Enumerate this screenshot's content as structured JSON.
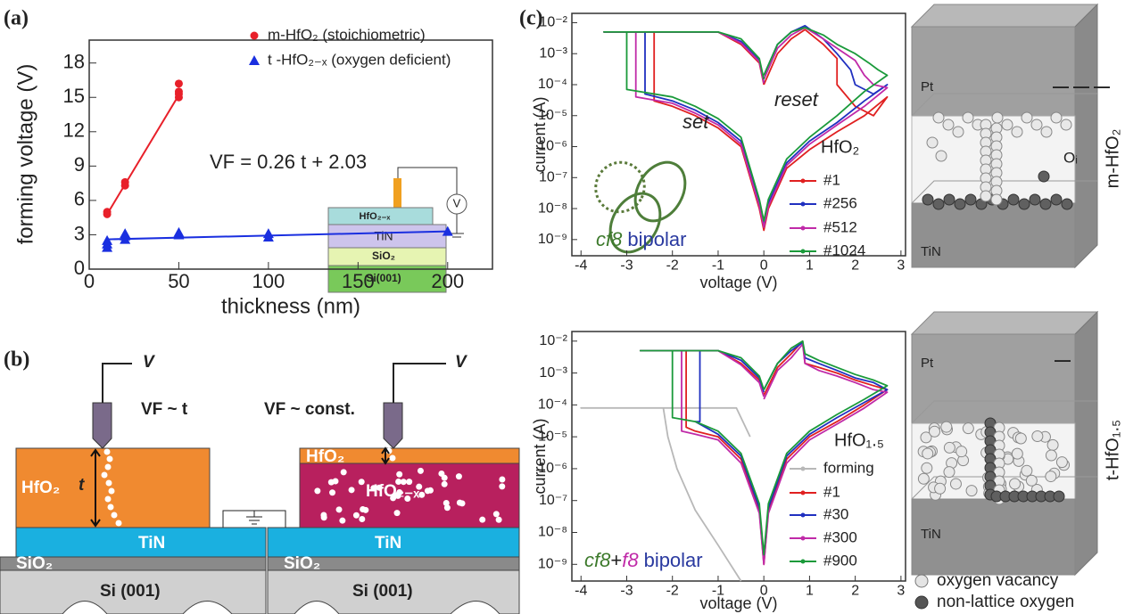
{
  "panel_labels": [
    "(a)",
    "(b)",
    "(c)"
  ],
  "chart_data": [
    {
      "type": "scatter",
      "xlabel": "thickness (nm)",
      "ylabel": "forming voltage (V)",
      "xlim": [
        0,
        225
      ],
      "ylim": [
        0,
        20
      ],
      "xticks": [
        0,
        50,
        100,
        150,
        200
      ],
      "yticks": [
        0,
        3,
        6,
        9,
        12,
        15,
        18
      ],
      "series": [
        {
          "name": "m-HfO₂ (stoichiometric)",
          "color": "#e8202a",
          "marker": "circle",
          "x": [
            10,
            10,
            20,
            20,
            50,
            50,
            50,
            50
          ],
          "values": [
            4.8,
            5.0,
            7.3,
            7.6,
            15.0,
            15.3,
            15.5,
            16.2
          ]
        },
        {
          "name": "t -HfO₂₋ₓ (oxygen deficient)",
          "color": "#1a2fe0",
          "marker": "triangle",
          "x": [
            10,
            10,
            10,
            20,
            20,
            20,
            50,
            50,
            100,
            100,
            200
          ],
          "values": [
            1.9,
            2.2,
            2.5,
            2.6,
            2.9,
            3.1,
            3.0,
            3.2,
            2.8,
            3.1,
            3.3
          ]
        }
      ],
      "fit_lines": [
        {
          "color": "#e8202a",
          "x": [
            10,
            50
          ],
          "values": [
            4.8,
            15.2
          ]
        },
        {
          "color": "#1a2fe0",
          "x": [
            10,
            200
          ],
          "values": [
            2.6,
            3.3
          ]
        }
      ],
      "annotation": "VF = 0.26 t + 2.03",
      "inset_labels": [
        "HfO₂₋ₓ",
        "TiN",
        "SiO₂",
        "Si(001)"
      ]
    },
    {
      "type": "line",
      "log_y": true,
      "xlabel": "voltage (V)",
      "ylabel": "current (A)",
      "xlim": [
        -4.2,
        3.1
      ],
      "ylim": [
        3e-10,
        0.02
      ],
      "xticks": [
        -4,
        -3,
        -2,
        -1,
        0,
        1,
        2,
        3
      ],
      "yticks": [
        {
          "value": 1e-09,
          "label": "10⁻⁹"
        },
        {
          "value": 1e-08,
          "label": "10⁻⁸"
        },
        {
          "value": 1e-07,
          "label": "10⁻⁷"
        },
        {
          "value": 1e-06,
          "label": "10⁻⁶"
        },
        {
          "value": 1e-05,
          "label": "10⁻⁵"
        },
        {
          "value": 0.0001,
          "label": "10⁻⁴"
        },
        {
          "value": 0.001,
          "label": "10⁻³"
        },
        {
          "value": 0.01,
          "label": "10⁻²"
        }
      ],
      "legend_title": "HfO₂",
      "annotations": [
        "set",
        "reset"
      ],
      "notes": [
        {
          "text": "cf8",
          "color": "#3d7a2c"
        },
        {
          "text": "bipolar",
          "color": "#2a3aa0"
        }
      ],
      "series": [
        {
          "name": "#1",
          "color": "#e02020",
          "x": [
            0,
            0.3,
            0.6,
            0.9,
            1.3,
            1.6,
            1.6,
            2.0,
            2.4,
            2.7,
            2.2,
            1.6,
            1.0,
            0.5,
            0.1,
            0,
            -0.1,
            -0.5,
            -1.0,
            -1.5,
            -2.0,
            -2.4,
            -2.4,
            -3.5,
            -1.0,
            -0.5,
            -0.1,
            0
          ],
          "values": [
            0.0001,
            0.001,
            0.003,
            0.006,
            0.002,
            0.0007,
            0.0001,
            2e-05,
            1e-05,
            4e-05,
            1e-05,
            3e-06,
            8e-07,
            2e-07,
            1e-08,
            2e-09,
            1e-08,
            1e-06,
            4e-06,
            1e-05,
            2e-05,
            3e-05,
            0.005,
            0.005,
            0.005,
            0.002,
            0.0005,
            0.0001
          ]
        },
        {
          "name": "#256",
          "color": "#2030c0",
          "x": [
            0,
            0.3,
            0.6,
            0.9,
            1.3,
            1.6,
            1.9,
            2.0,
            2.4,
            2.7,
            2.2,
            1.6,
            1.0,
            0.5,
            0.1,
            0,
            -0.1,
            -0.5,
            -1.0,
            -1.5,
            -2.0,
            -2.6,
            -2.6,
            -3.5,
            -1.0,
            -0.5,
            -0.1,
            0
          ],
          "values": [
            0.0002,
            0.002,
            0.005,
            0.008,
            0.003,
            0.001,
            0.0003,
            0.0001,
            5e-05,
            0.0001,
            3e-05,
            6e-06,
            1.5e-06,
            3e-07,
            1.5e-08,
            3e-09,
            1.5e-08,
            1.5e-06,
            6e-06,
            1.5e-05,
            3e-05,
            5e-05,
            0.005,
            0.005,
            0.005,
            0.0025,
            0.0006,
            0.00012
          ]
        },
        {
          "name": "#512",
          "color": "#c02aa8",
          "x": [
            0,
            0.3,
            0.6,
            0.9,
            1.3,
            1.6,
            2.0,
            2.2,
            2.4,
            2.7,
            2.2,
            1.6,
            1.0,
            0.5,
            0.1,
            0,
            -0.1,
            -0.5,
            -1.0,
            -1.5,
            -2.0,
            -2.8,
            -2.8,
            -3.5,
            -1.0,
            -0.5,
            -0.1,
            0
          ],
          "values": [
            0.00015,
            0.0015,
            0.004,
            0.007,
            0.003,
            0.0015,
            0.0006,
            0.0002,
            0.0001,
            8e-05,
            2e-05,
            5e-06,
            1.2e-06,
            2.5e-07,
            1.2e-08,
            2.5e-09,
            1.2e-08,
            1.2e-06,
            5e-06,
            1.2e-05,
            2.5e-05,
            4e-05,
            0.005,
            0.005,
            0.005,
            0.0022,
            0.00055,
            0.00011
          ]
        },
        {
          "name": "#1024",
          "color": "#1a9a3a",
          "x": [
            0,
            0.3,
            0.6,
            0.9,
            1.3,
            1.6,
            2.0,
            2.3,
            2.5,
            2.7,
            2.2,
            1.6,
            1.0,
            0.5,
            0.1,
            0,
            -0.1,
            -0.5,
            -1.0,
            -1.5,
            -2.0,
            -3.0,
            -3.0,
            -3.5,
            -1.0,
            -0.5,
            -0.1,
            0
          ],
          "values": [
            0.0002,
            0.002,
            0.005,
            0.007,
            0.004,
            0.002,
            0.001,
            0.0005,
            0.0003,
            0.0002,
            6e-05,
            1e-05,
            2e-06,
            4e-07,
            2e-08,
            4e-09,
            2e-08,
            2e-06,
            8e-06,
            2e-05,
            4e-05,
            7e-05,
            0.005,
            0.005,
            0.005,
            0.003,
            0.0007,
            0.00015
          ]
        }
      ]
    },
    {
      "type": "line",
      "log_y": true,
      "xlabel": "voltage (V)",
      "ylabel": "current (A)",
      "xlim": [
        -4.2,
        3.1
      ],
      "ylim": [
        3e-10,
        0.02
      ],
      "xticks": [
        -4,
        -3,
        -2,
        -1,
        0,
        1,
        2,
        3
      ],
      "yticks": [
        {
          "value": 1e-09,
          "label": "10⁻⁹"
        },
        {
          "value": 1e-08,
          "label": "10⁻⁸"
        },
        {
          "value": 1e-07,
          "label": "10⁻⁷"
        },
        {
          "value": 1e-06,
          "label": "10⁻⁶"
        },
        {
          "value": 1e-05,
          "label": "10⁻⁵"
        },
        {
          "value": 0.0001,
          "label": "10⁻⁴"
        },
        {
          "value": 0.001,
          "label": "10⁻³"
        },
        {
          "value": 0.01,
          "label": "10⁻²"
        }
      ],
      "legend_title": "HfO₁.₅",
      "annotations": [],
      "notes": [
        {
          "text": "cf8",
          "color": "#3d7a2c"
        },
        {
          "text": "+",
          "color": "#222222"
        },
        {
          "text": "f8",
          "color": "#c02aa8"
        },
        {
          "text": "bipolar",
          "color": "#2a3aa0"
        }
      ],
      "series": [
        {
          "name": "forming",
          "color": "#b8b8b8",
          "x": [
            -0.5,
            -1.0,
            -1.5,
            -1.9,
            -2.1,
            -2.2,
            -4.0,
            -0.6,
            -0.3
          ],
          "values": [
            3e-10,
            4e-09,
            5e-08,
            1e-06,
            1e-05,
            8e-05,
            8e-05,
            8e-05,
            1e-05
          ]
        },
        {
          "name": "#1",
          "color": "#e02020",
          "x": [
            0,
            0.3,
            0.6,
            0.85,
            0.9,
            1.2,
            1.6,
            2.0,
            2.4,
            2.7,
            2.2,
            1.6,
            1.0,
            0.5,
            0.1,
            0,
            -0.1,
            -0.5,
            -1.0,
            -1.5,
            -1.7,
            -1.7,
            -2.7,
            -1.0,
            -0.5,
            -0.1,
            0
          ],
          "values": [
            0.0002,
            0.0015,
            0.004,
            0.01,
            0.002,
            0.0015,
            0.001,
            0.0006,
            0.0004,
            0.0003,
            0.0001,
            3e-05,
            1e-05,
            2e-06,
            5e-08,
            1e-09,
            5e-08,
            2e-06,
            1e-05,
            1.5e-05,
            2e-05,
            0.005,
            0.005,
            0.005,
            0.002,
            0.0006,
            0.0002
          ]
        },
        {
          "name": "#30",
          "color": "#2030c0",
          "x": [
            0,
            0.3,
            0.6,
            0.85,
            0.9,
            1.2,
            1.6,
            2.0,
            2.4,
            2.7,
            2.2,
            1.6,
            1.0,
            0.5,
            0.1,
            0,
            -0.1,
            -0.5,
            -1.0,
            -1.5,
            -1.4,
            -1.4,
            -2.7,
            -1.0,
            -0.5,
            -0.1,
            0
          ],
          "values": [
            0.0003,
            0.002,
            0.005,
            0.009,
            0.003,
            0.002,
            0.0012,
            0.0007,
            0.0005,
            0.0003,
            0.00012,
            4e-05,
            1.2e-05,
            2.5e-06,
            6e-08,
            1.5e-09,
            6e-08,
            2.5e-06,
            1.2e-05,
            3e-05,
            3e-05,
            0.005,
            0.005,
            0.005,
            0.0025,
            0.0007,
            0.00025
          ]
        },
        {
          "name": "#300",
          "color": "#c02aa8",
          "x": [
            0,
            0.3,
            0.6,
            0.85,
            0.9,
            1.2,
            1.6,
            2.0,
            2.4,
            2.7,
            2.2,
            1.6,
            1.0,
            0.5,
            0.1,
            0,
            -0.1,
            -0.5,
            -1.0,
            -1.5,
            -1.8,
            -1.8,
            -2.7,
            -1.0,
            -0.5,
            -0.1,
            0
          ],
          "values": [
            0.00015,
            0.0012,
            0.003,
            0.008,
            0.002,
            0.0012,
            0.0008,
            0.0005,
            0.0003,
            0.00025,
            8e-05,
            2.5e-05,
            8e-06,
            1.5e-06,
            4e-08,
            1e-09,
            4e-08,
            1.5e-06,
            8e-06,
            1.2e-05,
            1.5e-05,
            0.005,
            0.005,
            0.005,
            0.0018,
            0.0005,
            0.00018
          ]
        },
        {
          "name": "#900",
          "color": "#1a9a3a",
          "x": [
            0,
            0.3,
            0.6,
            0.85,
            0.9,
            1.2,
            1.6,
            2.0,
            2.4,
            2.7,
            2.2,
            1.6,
            1.0,
            0.5,
            0.1,
            0,
            -0.1,
            -0.5,
            -1.0,
            -1.5,
            -2.0,
            -2.0,
            -2.7,
            -1.0,
            -0.5,
            -0.1,
            0
          ],
          "values": [
            0.0003,
            0.002,
            0.006,
            0.01,
            0.004,
            0.0025,
            0.0015,
            0.0009,
            0.0006,
            0.0004,
            0.00015,
            5e-05,
            1.5e-05,
            3e-06,
            8e-08,
            2e-09,
            8e-08,
            3e-06,
            1.5e-05,
            3e-05,
            4e-05,
            0.005,
            0.005,
            0.005,
            0.003,
            0.0008,
            0.0003
          ]
        }
      ]
    }
  ],
  "diagram_b": {
    "probe_label": "V",
    "left_rule": "VF ~ t",
    "right_rule": "VF ~ const.",
    "left_layers": [
      "HfO₂",
      "t",
      "TiN",
      "SiO₂",
      "Si (001)"
    ],
    "right_layers": [
      "HfO₂",
      "HfO₂₋ₓ",
      "TiN",
      "SiO₂",
      "Si (001)"
    ]
  },
  "diagram_c": {
    "top": {
      "electrode_top": "Pt",
      "electrode_bottom": "TiN",
      "oxide": "m-HfO₂",
      "ion": "Oᵢ"
    },
    "bottom": {
      "electrode_top": "Pt",
      "electrode_bottom": "TiN",
      "oxide": "t-HfO₁.₅"
    },
    "legend": [
      "oxygen vacancy",
      "non-lattice oxygen"
    ]
  }
}
